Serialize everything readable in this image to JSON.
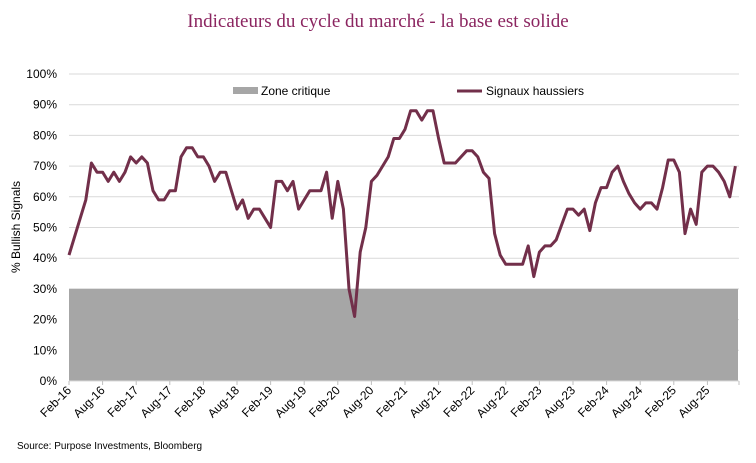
{
  "chart_data": {
    "type": "line",
    "title": "Indicateurs du cycle du marché - la base est solide",
    "ylabel": "% Bullish Signals",
    "xlabel": "",
    "ylim": [
      0,
      100
    ],
    "yticks": [
      "0%",
      "10%",
      "20%",
      "30%",
      "40%",
      "50%",
      "60%",
      "70%",
      "80%",
      "90%",
      "100%"
    ],
    "x_start": "Feb-16",
    "x_frequency": "monthly",
    "x_end": "Jan-26",
    "xticks": [
      "Feb-16",
      "Aug-16",
      "Feb-17",
      "Aug-17",
      "Feb-18",
      "Aug-18",
      "Feb-19",
      "Aug-19",
      "Feb-20",
      "Aug-20",
      "Feb-21",
      "Aug-21",
      "Feb-22",
      "Aug-22",
      "Feb-23",
      "Aug-23",
      "Feb-24",
      "Aug-24",
      "Feb-25",
      "Aug-25"
    ],
    "grid": true,
    "legend_position": "top",
    "series": [
      {
        "name": "Signaux haussiers",
        "color": "#722F4A",
        "type": "line",
        "values": [
          41,
          47,
          53,
          59,
          71,
          68,
          68,
          65,
          68,
          65,
          68,
          73,
          71,
          73,
          71,
          62,
          59,
          59,
          62,
          62,
          73,
          76,
          76,
          73,
          73,
          70,
          65,
          68,
          68,
          62,
          56,
          59,
          53,
          56,
          56,
          53,
          50,
          65,
          65,
          62,
          65,
          56,
          59,
          62,
          62,
          62,
          68,
          53,
          65,
          56,
          30,
          21,
          42,
          50,
          65,
          67,
          70,
          73,
          79,
          79,
          82,
          88,
          88,
          85,
          88,
          88,
          79,
          71,
          71,
          71,
          73,
          75,
          75,
          73,
          68,
          66,
          48,
          41,
          38,
          38,
          38,
          38,
          44,
          34,
          42,
          44,
          44,
          46,
          51,
          56,
          56,
          54,
          56,
          49,
          58,
          63,
          63,
          68,
          70,
          65,
          61,
          58,
          56,
          58,
          58,
          56,
          63,
          72,
          72,
          68,
          48,
          56,
          51,
          68,
          70,
          70,
          68,
          65,
          60,
          70
        ]
      },
      {
        "name": "Zone critique",
        "color": "#A6A6A6",
        "type": "area",
        "lower": 0,
        "upper": 30
      }
    ],
    "source": "Source: Purpose Investments, Bloomberg",
    "title_color": "#8B2560"
  }
}
